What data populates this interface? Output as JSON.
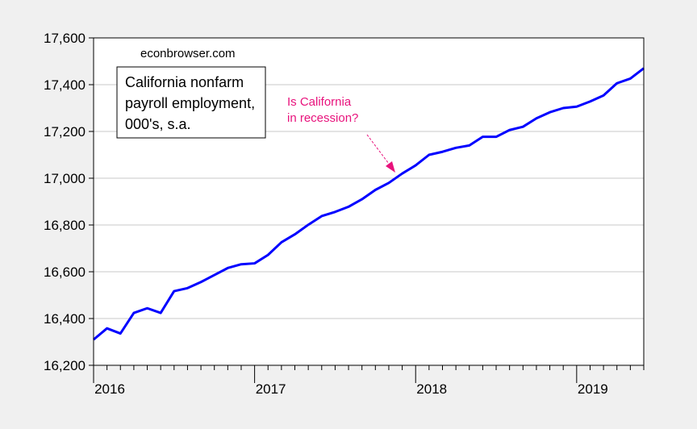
{
  "chart_data": {
    "type": "line",
    "title_lines": [
      "California nonfarm",
      "payroll employment,",
      "000's, s.a."
    ],
    "source": "econbrowser.com",
    "annotation_lines": [
      "Is California",
      "in recession?"
    ],
    "xlabel": "",
    "ylabel": "",
    "ylim": [
      16200,
      17600
    ],
    "y_ticks": [
      16200,
      16400,
      16600,
      16800,
      17000,
      17200,
      17400,
      17600
    ],
    "y_tick_labels": [
      "16,200",
      "16,400",
      "16,600",
      "16,800",
      "17,000",
      "17,200",
      "17,400",
      "17,600"
    ],
    "x_tick_labels": [
      "2016",
      "2017",
      "2018",
      "2019"
    ],
    "x_ticks": [
      "2016-01",
      "2017-01",
      "2018-01",
      "2019-01"
    ],
    "xlim": [
      "2016-01",
      "2019-06"
    ],
    "grid": true,
    "series": [
      {
        "color": "#0000ff",
        "x": [
          "2016-01",
          "2016-02",
          "2016-03",
          "2016-04",
          "2016-05",
          "2016-06",
          "2016-07",
          "2016-08",
          "2016-09",
          "2016-10",
          "2016-11",
          "2016-12",
          "2017-01",
          "2017-02",
          "2017-03",
          "2017-04",
          "2017-05",
          "2017-06",
          "2017-07",
          "2017-08",
          "2017-09",
          "2017-10",
          "2017-11",
          "2017-12",
          "2018-01",
          "2018-02",
          "2018-03",
          "2018-04",
          "2018-05",
          "2018-06",
          "2018-07",
          "2018-08",
          "2018-09",
          "2018-10",
          "2018-11",
          "2018-12",
          "2019-01",
          "2019-02",
          "2019-03",
          "2019-04",
          "2019-05",
          "2019-06"
        ],
        "values": [
          16310,
          16358,
          16336,
          16424,
          16444,
          16424,
          16517,
          16530,
          16556,
          16586,
          16616,
          16632,
          16636,
          16672,
          16726,
          16760,
          16801,
          16838,
          16856,
          16878,
          16910,
          16950,
          16980,
          17020,
          17055,
          17100,
          17113,
          17130,
          17140,
          17177,
          17177,
          17206,
          17220,
          17256,
          17282,
          17300,
          17306,
          17328,
          17354,
          17406,
          17426,
          17470
        ]
      }
    ]
  },
  "colors": {
    "background": "#f0f0f0",
    "plot_background": "#ffffff",
    "grid": "#c8c8c8",
    "annotation": "#e8127c"
  }
}
